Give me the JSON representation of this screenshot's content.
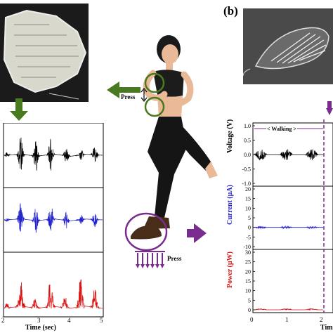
{
  "panel_label": "(b)",
  "glove_caption": "Press",
  "foot_caption": "Press",
  "colors": {
    "arrow": "#4a7a1f",
    "purple": "#7a2c8e",
    "voltage": "#000000",
    "current": "#2222cc",
    "power": "#dd1111"
  },
  "left_panel": {
    "x_ticks": [
      "2",
      "3",
      "4",
      "5"
    ],
    "x_label": "Time (sec)"
  },
  "right_panel": {
    "walking_label": "< Walking >",
    "x_ticks": [
      "0",
      "1",
      "2"
    ],
    "x_label_partial": "Tim"
  },
  "chart_data": [
    {
      "type": "line",
      "panel": "left",
      "x": [
        2,
        2.5,
        3,
        3.5,
        4,
        4.5,
        5
      ],
      "series": [
        {
          "name": "",
          "values": [
            0,
            0.8,
            -0.7,
            0.9,
            -0.8,
            0.7,
            0
          ]
        },
        {
          "name": "",
          "values": [
            0,
            0.7,
            -0.6,
            0.8,
            -0.7,
            0.6,
            0
          ]
        },
        {
          "name": "",
          "values": [
            0,
            0.9,
            0.1,
            0.8,
            0.1,
            0.9,
            0
          ]
        }
      ],
      "xlim": [
        2,
        5
      ]
    },
    {
      "type": "line",
      "panel": "right",
      "xlabel": "Time",
      "x": [
        0,
        0.25,
        0.5,
        0.75,
        1,
        1.25,
        1.5,
        1.75,
        2,
        2.25
      ],
      "series": [
        {
          "name": "Voltage",
          "values": [
            0,
            0.12,
            0.05,
            -0.1,
            0.1,
            -0.08,
            0.1,
            -0.1,
            0.05,
            0
          ]
        },
        {
          "name": "Current",
          "values": [
            0,
            0.3,
            0,
            -0.2,
            0,
            0.2,
            0,
            -0.3,
            0,
            0
          ]
        },
        {
          "name": "Power",
          "values": [
            0,
            0.2,
            0.1,
            0.2,
            0.1,
            0.2,
            0.1,
            0.2,
            0.1,
            0
          ]
        }
      ],
      "subplots": [
        {
          "ylabel": "Voltage (V)",
          "ylim": [
            -1.0,
            1.0
          ],
          "y_ticks": [
            "1.0",
            "0.5",
            "0.0",
            "-0.5",
            "-1.0"
          ]
        },
        {
          "ylabel": "Current (µA)",
          "ylim": [
            -10,
            20
          ],
          "y_ticks": [
            "20",
            "15",
            "10",
            "5",
            "0",
            "-5",
            "-10"
          ]
        },
        {
          "ylabel": "Power (µW)",
          "ylim": [
            0,
            30
          ],
          "y_ticks": [
            "30",
            "25",
            "20",
            "15",
            "10",
            "5",
            "0"
          ]
        }
      ],
      "xlim": [
        0,
        2.25
      ]
    }
  ]
}
